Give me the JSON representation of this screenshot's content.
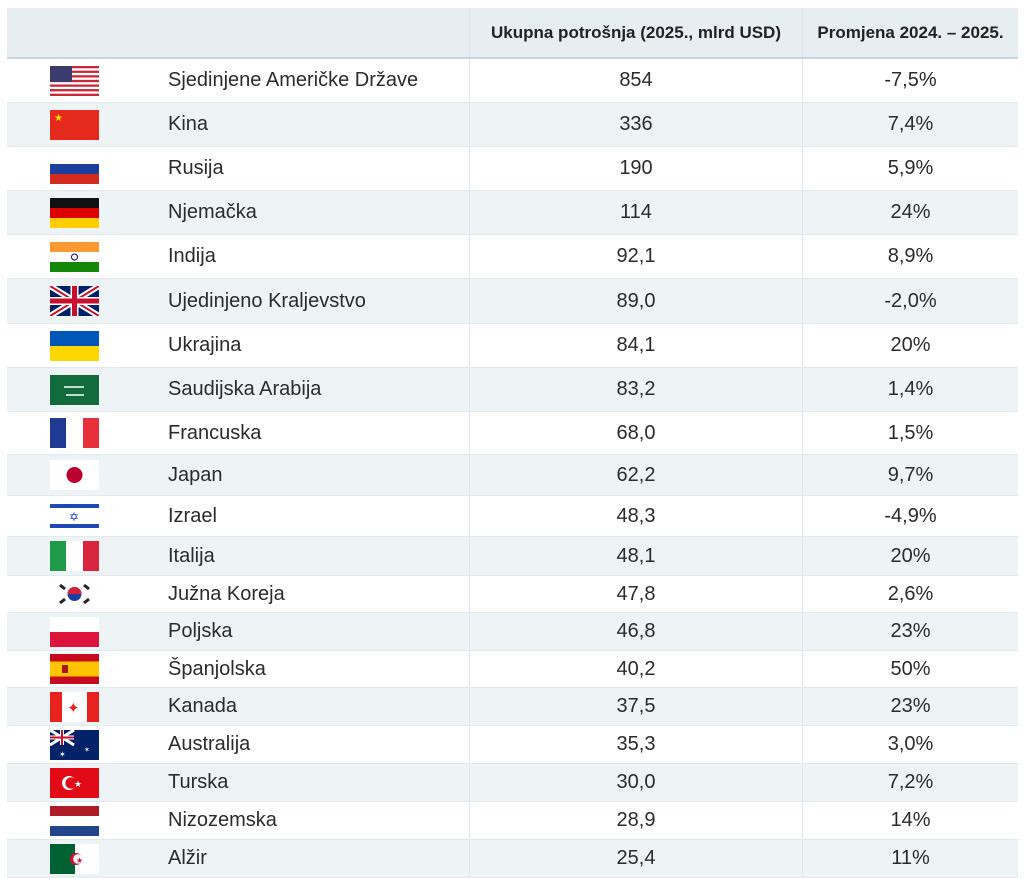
{
  "header": {
    "col_name": "",
    "col_total": "Ukupna potrošnja (2025., mlrd USD)",
    "col_change": "Promjena 2024. – 2025."
  },
  "rows": [
    {
      "flag": "flag-us-icon",
      "country": "Sjedinjene Američke Države",
      "total": "854",
      "change": "-7,5%"
    },
    {
      "flag": "flag-cn-icon",
      "country": "Kina",
      "total": "336",
      "change": "7,4%"
    },
    {
      "flag": "flag-ru-icon",
      "country": "Rusija",
      "total": "190",
      "change": "5,9%"
    },
    {
      "flag": "flag-de-icon",
      "country": "Njemačka",
      "total": "114",
      "change": "24%"
    },
    {
      "flag": "flag-in-icon",
      "country": "Indija",
      "total": "92,1",
      "change": "8,9%"
    },
    {
      "flag": "flag-gb-icon",
      "country": "Ujedinjeno Kraljevstvo",
      "total": "89,0",
      "change": "-2,0%"
    },
    {
      "flag": "flag-ua-icon",
      "country": "Ukrajina",
      "total": "84,1",
      "change": "20%"
    },
    {
      "flag": "flag-sa-icon",
      "country": "Saudijska Arabija",
      "total": "83,2",
      "change": "1,4%"
    },
    {
      "flag": "flag-fr-icon",
      "country": "Francuska",
      "total": "68,0",
      "change": "1,5%"
    },
    {
      "flag": "flag-jp-icon",
      "country": "Japan",
      "total": "62,2",
      "change": "9,7%"
    },
    {
      "flag": "flag-il-icon",
      "country": "Izrael",
      "total": "48,3",
      "change": "-4,9%"
    },
    {
      "flag": "flag-it-icon",
      "country": "Italija",
      "total": "48,1",
      "change": "20%"
    },
    {
      "flag": "flag-kr-icon",
      "country": "Južna Koreja",
      "total": "47,8",
      "change": "2,6%"
    },
    {
      "flag": "flag-pl-icon",
      "country": "Poljska",
      "total": "46,8",
      "change": "23%"
    },
    {
      "flag": "flag-es-icon",
      "country": "Španjolska",
      "total": "40,2",
      "change": "50%"
    },
    {
      "flag": "flag-ca-icon",
      "country": "Kanada",
      "total": "37,5",
      "change": "23%"
    },
    {
      "flag": "flag-au-icon",
      "country": "Australija",
      "total": "35,3",
      "change": "3,0%"
    },
    {
      "flag": "flag-tr-icon",
      "country": "Turska",
      "total": "30,0",
      "change": "7,2%"
    },
    {
      "flag": "flag-nl-icon",
      "country": "Nizozemska",
      "total": "28,9",
      "change": "14%"
    },
    {
      "flag": "flag-dz-icon",
      "country": "Alžir",
      "total": "25,4",
      "change": "11%"
    }
  ]
}
